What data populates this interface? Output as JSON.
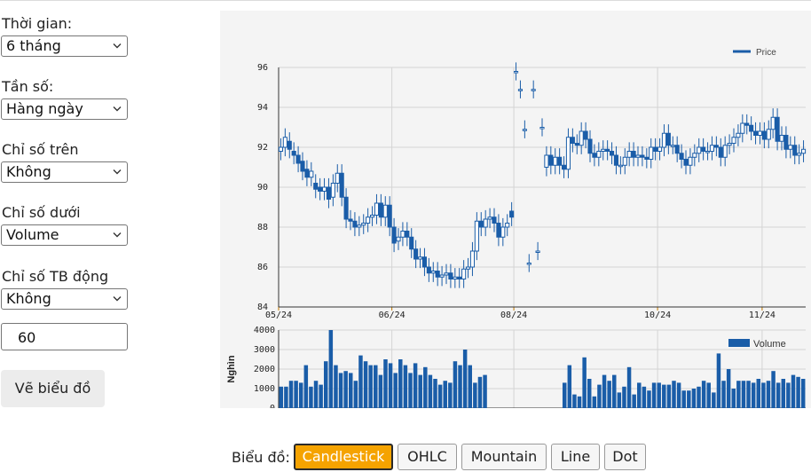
{
  "controls": {
    "period": {
      "label": "Thời gian:",
      "value": "6 tháng"
    },
    "frequency": {
      "label": "Tần số:",
      "value": "Hàng ngày"
    },
    "upper_indicator": {
      "label": "Chỉ số trên",
      "value": "Không"
    },
    "lower_indicator": {
      "label": "Chỉ số dưới",
      "value": "Volume"
    },
    "moving_avg": {
      "label": "Chỉ số TB động",
      "value": "Không"
    },
    "ma_period": "60",
    "draw_button": "Vẽ biểu đồ"
  },
  "chart_type_bar": {
    "label": "Biểu đồ:",
    "options": [
      "Candlestick",
      "OHLC",
      "Mountain",
      "Line",
      "Dot"
    ],
    "selected": "Candlestick"
  },
  "colors": {
    "series": "#1a5da8",
    "active_button": "#f5a300",
    "grid": "#d0d0d0",
    "panel": "#f4f4f4"
  },
  "chart_data": [
    {
      "type": "candlestick",
      "legend": "Price",
      "legend_position": "top-right",
      "ylim": [
        84,
        96
      ],
      "yticks": [
        84,
        86,
        88,
        90,
        92,
        94,
        96
      ],
      "xticks": [
        "05/24",
        "06/24",
        "08/24",
        "10/24",
        "11/24"
      ],
      "grid": true,
      "series": [
        {
          "name": "Price",
          "close": [
            92.0,
            92.5,
            91.9,
            91.6,
            91.2,
            90.8,
            90.5,
            90.8,
            89.9,
            89.8,
            90.0,
            89.4,
            90.2,
            90.7,
            89.5,
            88.4,
            88.3,
            88.0,
            88.1,
            88.2,
            88.5,
            88.6,
            89.2,
            88.5,
            89.1,
            88.0,
            87.2,
            87.5,
            87.8,
            87.5,
            86.9,
            86.4,
            86.5,
            86.0,
            85.7,
            85.8,
            85.5,
            85.6,
            85.7,
            85.4,
            85.5,
            85.4,
            85.9,
            86.0,
            86.8,
            88.3,
            88.0,
            88.4,
            88.5,
            88.2,
            87.5,
            88.0,
            88.2,
            88.5,
            95.8,
            94.9,
            92.9,
            86.2,
            94.9,
            86.8,
            93.0,
            91.6,
            91.1,
            91.5,
            91.1,
            90.9,
            92.5,
            92.2,
            92.1,
            92.8,
            92.4,
            91.7,
            91.5,
            91.8,
            91.9,
            91.8,
            91.6,
            91.1,
            91.1,
            91.5,
            91.8,
            91.5,
            91.6,
            91.5,
            91.4,
            92.0,
            91.8,
            92.0,
            92.7,
            92.1,
            92.1,
            91.7,
            91.4,
            91.1,
            91.5,
            91.7,
            92.0,
            91.8,
            91.8,
            92.1,
            92.0,
            91.5,
            92.1,
            92.2,
            92.5,
            92.7,
            93.2,
            93.1,
            92.8,
            92.6,
            92.8,
            92.4,
            92.9,
            93.5,
            92.3,
            92.6,
            91.9,
            92.1,
            91.6,
            91.7,
            91.9
          ],
          "open": [
            91.8,
            92.0,
            92.3,
            91.8,
            91.6,
            91.3,
            90.9,
            90.5,
            90.2,
            90.0,
            89.8,
            90.0,
            89.5,
            90.2,
            90.7,
            89.5,
            88.4,
            88.3,
            88.0,
            88.1,
            88.2,
            88.5,
            88.6,
            89.2,
            88.5,
            89.1,
            88.0,
            87.3,
            87.5,
            87.8,
            87.5,
            86.9,
            86.4,
            86.5,
            86.0,
            85.7,
            85.8,
            85.5,
            85.6,
            85.7,
            85.4,
            85.5,
            85.4,
            85.9,
            86.0,
            86.8,
            88.3,
            88.0,
            88.4,
            88.5,
            88.2,
            87.5,
            88.0,
            88.8,
            95.8,
            94.9,
            92.9,
            86.2,
            94.9,
            86.8,
            93.0,
            91.0,
            91.6,
            91.1,
            91.5,
            91.1,
            90.9,
            92.5,
            92.2,
            92.1,
            92.8,
            92.4,
            91.7,
            91.5,
            91.8,
            91.9,
            91.8,
            91.6,
            91.1,
            91.1,
            91.5,
            91.8,
            91.5,
            91.6,
            91.5,
            91.4,
            92.0,
            91.8,
            92.0,
            92.7,
            92.1,
            92.1,
            91.7,
            91.4,
            91.1,
            91.5,
            91.7,
            92.0,
            91.8,
            91.8,
            92.1,
            92.0,
            91.5,
            92.1,
            92.2,
            92.5,
            92.7,
            93.2,
            93.1,
            92.8,
            92.6,
            92.8,
            92.4,
            92.9,
            93.5,
            92.3,
            92.6,
            91.9,
            92.1,
            91.6,
            91.7
          ]
        }
      ]
    },
    {
      "type": "bar",
      "legend": "Volume",
      "legend_position": "top-right",
      "ylabel": "Nghìn",
      "ylim": [
        0,
        4000
      ],
      "yticks": [
        0,
        1000,
        2000,
        3000,
        4000
      ],
      "grid": true,
      "series": [
        {
          "name": "Volume",
          "values": [
            1100,
            1100,
            1400,
            1400,
            1300,
            2200,
            1100,
            1400,
            1200,
            2400,
            4000,
            2200,
            1800,
            1900,
            1800,
            1400,
            2700,
            2400,
            2200,
            2200,
            1700,
            2500,
            2300,
            1800,
            2500,
            2200,
            1800,
            2300,
            1700,
            2100,
            1700,
            1500,
            1200,
            1400,
            1300,
            2400,
            2200,
            3000,
            2200,
            1300,
            1600,
            1700,
            0,
            0,
            0,
            0,
            0,
            0,
            0,
            0,
            0,
            0,
            0,
            0,
            0,
            0,
            0,
            1300,
            2200,
            700,
            600,
            2600,
            1500,
            600,
            1200,
            1700,
            1400,
            1700,
            800,
            1100,
            2100,
            700,
            1300,
            1100,
            900,
            1300,
            1300,
            1200,
            1200,
            1400,
            1300,
            900,
            900,
            1000,
            1100,
            1400,
            1300,
            800,
            2800,
            1400,
            2000,
            1000,
            1400,
            1400,
            1400,
            1300,
            1500,
            1300,
            1400,
            1900,
            1300,
            1500,
            1300,
            1700,
            1600,
            1500
          ]
        }
      ]
    }
  ]
}
